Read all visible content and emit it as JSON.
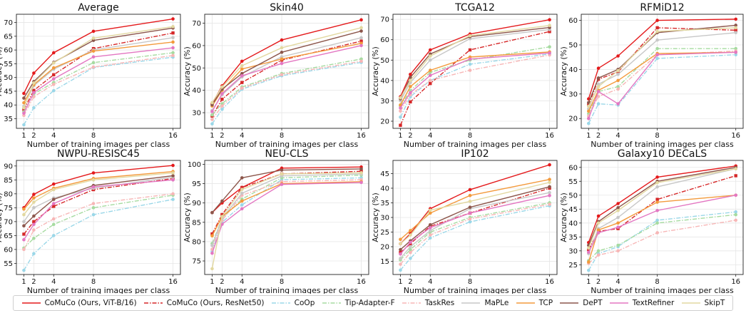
{
  "legend": [
    {
      "name": "CoMuCo (Ours, ViT-B/16)",
      "color": "#e41a1c",
      "dash": "solid",
      "marker": "circle"
    },
    {
      "name": "CoMuCo (Ours, ResNet50)",
      "color": "#d62728",
      "dash": "dashdot",
      "marker": "square"
    },
    {
      "name": "CoOp",
      "color": "#9ad7e8",
      "dash": "dashdot",
      "marker": "circle"
    },
    {
      "name": "Tip-Adapter-F",
      "color": "#a6dba0",
      "dash": "dashdot",
      "marker": "circle"
    },
    {
      "name": "TaskRes",
      "color": "#f7b6b6",
      "dash": "dashdot",
      "marker": "circle"
    },
    {
      "name": "MaPLe",
      "color": "#c7c7c7",
      "dash": "solid",
      "marker": "circle"
    },
    {
      "name": "TCP",
      "color": "#f39a3c",
      "dash": "solid",
      "marker": "circle"
    },
    {
      "name": "DePT",
      "color": "#8c564b",
      "dash": "solid",
      "marker": "circle"
    },
    {
      "name": "TextRefiner",
      "color": "#e377c2",
      "dash": "solid",
      "marker": "circle"
    },
    {
      "name": "SkipT",
      "color": "#e2d8a0",
      "dash": "solid",
      "marker": "circle"
    }
  ],
  "chart_data": [
    {
      "type": "line",
      "title": "Average",
      "xlabel": "Number of training images per class",
      "ylabel": "Accuracy (%)",
      "x": [
        1,
        2,
        4,
        8,
        16
      ],
      "xticks": [
        "1",
        "2",
        "4",
        "8",
        "16"
      ],
      "ylim": [
        31.5,
        73
      ],
      "yticks": [
        35,
        40,
        45,
        50,
        55,
        60,
        65,
        70
      ],
      "series": [
        {
          "name": "CoMuCo (Ours, ViT-B/16)",
          "values": [
            44.2,
            51.6,
            59.0,
            66.8,
            71.3
          ]
        },
        {
          "name": "CoMuCo (Ours, ResNet50)",
          "values": [
            38.3,
            45.3,
            51.0,
            60.5,
            66.2
          ]
        },
        {
          "name": "CoOp",
          "values": [
            32.8,
            39.0,
            45.2,
            53.6,
            57.4
          ]
        },
        {
          "name": "Tip-Adapter-F",
          "values": [
            37.5,
            44.0,
            48.2,
            55.4,
            59.0
          ]
        },
        {
          "name": "TaskRes",
          "values": [
            36.2,
            43.0,
            47.5,
            53.8,
            58.0
          ]
        },
        {
          "name": "MaPLe",
          "values": [
            39.5,
            47.0,
            53.0,
            60.0,
            64.5
          ]
        },
        {
          "name": "TCP",
          "values": [
            40.8,
            47.4,
            53.5,
            59.6,
            62.9
          ]
        },
        {
          "name": "DePT",
          "values": [
            42.5,
            48.5,
            55.5,
            63.5,
            68.0
          ]
        },
        {
          "name": "TextRefiner",
          "values": [
            37.0,
            44.5,
            49.5,
            57.5,
            60.8
          ]
        },
        {
          "name": "SkipT",
          "values": [
            39.0,
            48.0,
            55.3,
            64.3,
            68.5
          ]
        }
      ]
    },
    {
      "type": "line",
      "title": "Skin40",
      "xlabel": "Number of training images per class",
      "ylabel": "Accuracy (%)",
      "x": [
        1,
        2,
        4,
        8,
        16
      ],
      "xticks": [
        "1",
        "2",
        "4",
        "8",
        "16"
      ],
      "ylim": [
        23,
        74
      ],
      "yticks": [
        30,
        40,
        50,
        60,
        70
      ],
      "series": [
        {
          "name": "CoMuCo (Ours, ViT-B/16)",
          "values": [
            34.0,
            42.0,
            53.0,
            62.5,
            71.5
          ]
        },
        {
          "name": "CoMuCo (Ours, ResNet50)",
          "values": [
            28.5,
            36.0,
            43.5,
            53.5,
            62.0
          ]
        },
        {
          "name": "CoOp",
          "values": [
            25.0,
            31.5,
            40.5,
            46.5,
            52.5
          ]
        },
        {
          "name": "Tip-Adapter-F",
          "values": [
            29.0,
            34.0,
            41.5,
            47.5,
            54.0
          ]
        },
        {
          "name": "TaskRes",
          "values": [
            27.0,
            33.0,
            41.0,
            47.0,
            53.0
          ]
        },
        {
          "name": "MaPLe",
          "values": [
            31.0,
            38.0,
            46.0,
            55.0,
            63.5
          ]
        },
        {
          "name": "TCP",
          "values": [
            33.0,
            40.0,
            49.5,
            54.0,
            61.0
          ]
        },
        {
          "name": "DePT",
          "values": [
            33.5,
            40.5,
            47.5,
            57.0,
            66.5
          ]
        },
        {
          "name": "TextRefiner",
          "values": [
            30.5,
            38.5,
            46.5,
            52.0,
            60.0
          ]
        },
        {
          "name": "SkipT",
          "values": [
            34.5,
            41.5,
            51.0,
            59.0,
            68.0
          ]
        }
      ]
    },
    {
      "type": "line",
      "title": "TCGA12",
      "xlabel": "Number of training images per class",
      "ylabel": "Accuracy (%)",
      "x": [
        1,
        2,
        4,
        8,
        16
      ],
      "xticks": [
        "1",
        "2",
        "4",
        "8",
        "16"
      ],
      "ylim": [
        16.5,
        72.5
      ],
      "yticks": [
        20,
        30,
        40,
        50,
        60,
        70
      ],
      "series": [
        {
          "name": "CoMuCo (Ours, ViT-B/16)",
          "values": [
            32.0,
            43.0,
            55.0,
            62.8,
            69.8
          ]
        },
        {
          "name": "CoMuCo (Ours, ResNet50)",
          "values": [
            18.0,
            29.5,
            38.5,
            55.0,
            64.0
          ]
        },
        {
          "name": "CoOp",
          "values": [
            22.0,
            32.0,
            40.0,
            48.0,
            53.0
          ]
        },
        {
          "name": "Tip-Adapter-F",
          "values": [
            27.5,
            35.0,
            44.0,
            50.0,
            56.5
          ]
        },
        {
          "name": "TaskRes",
          "values": [
            25.0,
            33.0,
            40.0,
            45.0,
            52.5
          ]
        },
        {
          "name": "MaPLe",
          "values": [
            30.0,
            39.0,
            50.0,
            60.5,
            65.0
          ]
        },
        {
          "name": "TCP",
          "values": [
            28.0,
            37.0,
            45.0,
            51.5,
            54.0
          ]
        },
        {
          "name": "DePT",
          "values": [
            31.0,
            41.5,
            53.0,
            61.5,
            66.0
          ]
        },
        {
          "name": "TextRefiner",
          "values": [
            26.5,
            34.0,
            42.5,
            50.5,
            53.5
          ]
        },
        {
          "name": "SkipT",
          "values": [
            31.5,
            40.0,
            52.0,
            62.0,
            67.0
          ]
        }
      ]
    },
    {
      "type": "line",
      "title": "RFMiD12",
      "xlabel": "Number of training images per class",
      "ylabel": "Accuracy (%)",
      "x": [
        1,
        2,
        4,
        8,
        16
      ],
      "xticks": [
        "1",
        "2",
        "4",
        "8",
        "16"
      ],
      "ylim": [
        16,
        62.5
      ],
      "yticks": [
        20,
        30,
        40,
        50,
        60
      ],
      "series": [
        {
          "name": "CoMuCo (Ours, ViT-B/16)",
          "values": [
            28.0,
            40.5,
            45.5,
            60.0,
            60.5
          ]
        },
        {
          "name": "CoMuCo (Ours, ResNet50)",
          "values": [
            25.5,
            36.0,
            39.0,
            57.0,
            56.0
          ]
        },
        {
          "name": "CoOp",
          "values": [
            18.0,
            26.0,
            25.5,
            44.5,
            46.0
          ]
        },
        {
          "name": "Tip-Adapter-F",
          "values": [
            22.0,
            31.0,
            33.0,
            48.5,
            48.5
          ]
        },
        {
          "name": "TaskRes",
          "values": [
            21.0,
            29.0,
            32.0,
            46.0,
            47.5
          ]
        },
        {
          "name": "MaPLe",
          "values": [
            24.0,
            34.0,
            38.0,
            52.0,
            55.0
          ]
        },
        {
          "name": "TCP",
          "values": [
            23.0,
            31.5,
            35.5,
            46.5,
            47.0
          ]
        },
        {
          "name": "DePT",
          "values": [
            26.5,
            36.5,
            40.0,
            55.0,
            58.0
          ]
        },
        {
          "name": "TextRefiner",
          "values": [
            20.0,
            31.0,
            26.0,
            46.0,
            47.0
          ]
        },
        {
          "name": "SkipT",
          "values": [
            25.0,
            33.0,
            39.5,
            55.5,
            57.0
          ]
        }
      ]
    },
    {
      "type": "line",
      "title": "NWPU-RESISC45",
      "xlabel": "Number of training images per class",
      "ylabel": "Accuracy (%)",
      "x": [
        1,
        2,
        4,
        8,
        16
      ],
      "xticks": [
        "1",
        "2",
        "4",
        "8",
        "16"
      ],
      "ylim": [
        51,
        92
      ],
      "yticks": [
        55,
        60,
        65,
        70,
        75,
        80,
        85,
        90
      ],
      "series": [
        {
          "name": "CoMuCo (Ours, ViT-B/16)",
          "values": [
            75.0,
            79.8,
            83.5,
            87.5,
            90.2
          ]
        },
        {
          "name": "CoMuCo (Ours, ResNet50)",
          "values": [
            65.5,
            70.0,
            75.5,
            81.5,
            85.5
          ]
        },
        {
          "name": "CoOp",
          "values": [
            52.5,
            58.5,
            65.0,
            72.5,
            78.0
          ]
        },
        {
          "name": "Tip-Adapter-F",
          "values": [
            60.5,
            64.0,
            69.0,
            75.0,
            79.5
          ]
        },
        {
          "name": "TaskRes",
          "values": [
            60.0,
            67.0,
            71.0,
            76.5,
            80.0
          ]
        },
        {
          "name": "MaPLe",
          "values": [
            70.0,
            75.0,
            78.5,
            82.0,
            86.0
          ]
        },
        {
          "name": "TCP",
          "values": [
            74.5,
            78.5,
            82.0,
            85.5,
            88.0
          ]
        },
        {
          "name": "DePT",
          "values": [
            68.5,
            72.0,
            78.0,
            83.0,
            86.5
          ]
        },
        {
          "name": "TextRefiner",
          "values": [
            63.5,
            69.0,
            76.5,
            82.5,
            85.0
          ]
        },
        {
          "name": "SkipT",
          "values": [
            72.5,
            77.0,
            81.5,
            85.0,
            87.5
          ]
        }
      ]
    },
    {
      "type": "line",
      "title": "NEU-CLS",
      "xlabel": "Number of training images per class",
      "ylabel": "Accuracy (%)",
      "x": [
        1,
        2,
        4,
        8,
        16
      ],
      "xticks": [
        "1",
        "2",
        "4",
        "8",
        "16"
      ],
      "ylim": [
        71.5,
        101
      ],
      "yticks": [
        75,
        80,
        85,
        90,
        95,
        100
      ],
      "series": [
        {
          "name": "CoMuCo (Ours, ViT-B/16)",
          "values": [
            87.5,
            90.0,
            94.0,
            99.0,
            99.3
          ]
        },
        {
          "name": "CoMuCo (Ours, ResNet50)",
          "values": [
            82.0,
            87.0,
            94.0,
            97.5,
            98.2
          ]
        },
        {
          "name": "CoOp",
          "values": [
            77.5,
            85.0,
            89.5,
            96.0,
            96.5
          ]
        },
        {
          "name": "Tip-Adapter-F",
          "values": [
            79.5,
            86.0,
            91.0,
            96.5,
            97.2
          ]
        },
        {
          "name": "TaskRes",
          "values": [
            78.0,
            85.5,
            92.0,
            95.5,
            96.0
          ]
        },
        {
          "name": "MaPLe",
          "values": [
            79.0,
            86.0,
            92.5,
            97.0,
            97.5
          ]
        },
        {
          "name": "TCP",
          "values": [
            81.5,
            86.5,
            90.5,
            95.0,
            95.5
          ]
        },
        {
          "name": "DePT",
          "values": [
            87.5,
            90.5,
            96.5,
            98.5,
            98.8
          ]
        },
        {
          "name": "TextRefiner",
          "values": [
            77.0,
            84.5,
            88.5,
            94.8,
            95.3
          ]
        },
        {
          "name": "SkipT",
          "values": [
            73.0,
            86.5,
            93.5,
            97.5,
            97.8
          ]
        }
      ]
    },
    {
      "type": "line",
      "title": "IP102",
      "xlabel": "Number of training images per class",
      "ylabel": "Accuracy (%)",
      "x": [
        1,
        2,
        4,
        8,
        16
      ],
      "xticks": [
        "1",
        "2",
        "4",
        "8",
        "16"
      ],
      "ylim": [
        10.5,
        49.5
      ],
      "yticks": [
        15,
        20,
        25,
        30,
        35,
        40,
        45
      ],
      "series": [
        {
          "name": "CoMuCo (Ours, ViT-B/16)",
          "values": [
            21.0,
            24.5,
            33.0,
            39.5,
            48.0
          ]
        },
        {
          "name": "CoMuCo (Ours, ResNet50)",
          "values": [
            18.0,
            21.0,
            27.0,
            31.5,
            40.0
          ]
        },
        {
          "name": "CoOp",
          "values": [
            12.0,
            16.0,
            23.0,
            28.5,
            34.0
          ]
        },
        {
          "name": "Tip-Adapter-F",
          "values": [
            15.5,
            19.0,
            25.0,
            30.0,
            35.0
          ]
        },
        {
          "name": "TaskRes",
          "values": [
            14.0,
            18.0,
            24.0,
            29.5,
            34.5
          ]
        },
        {
          "name": "MaPLe",
          "values": [
            16.0,
            20.0,
            25.5,
            33.0,
            38.5
          ]
        },
        {
          "name": "TCP",
          "values": [
            22.5,
            25.5,
            31.5,
            37.5,
            43.0
          ]
        },
        {
          "name": "DePT",
          "values": [
            19.0,
            22.0,
            27.5,
            33.5,
            40.5
          ]
        },
        {
          "name": "TextRefiner",
          "values": [
            17.5,
            21.5,
            26.5,
            31.5,
            37.5
          ]
        },
        {
          "name": "SkipT",
          "values": [
            21.0,
            24.0,
            32.5,
            35.5,
            42.0
          ]
        }
      ]
    },
    {
      "type": "line",
      "title": "Galaxy10 DECaLS",
      "xlabel": "Number of training images per class",
      "ylabel": "Accuracy (%)",
      "x": [
        1,
        2,
        4,
        8,
        16
      ],
      "xticks": [
        "1",
        "2",
        "4",
        "8",
        "16"
      ],
      "ylim": [
        21.5,
        62.5
      ],
      "yticks": [
        25,
        30,
        35,
        40,
        45,
        50,
        55,
        60
      ],
      "series": [
        {
          "name": "CoMuCo (Ours, ViT-B/16)",
          "values": [
            33.0,
            42.5,
            47.0,
            56.5,
            60.5
          ]
        },
        {
          "name": "CoMuCo (Ours, ResNet50)",
          "values": [
            30.5,
            37.0,
            38.0,
            48.5,
            57.0
          ]
        },
        {
          "name": "CoOp",
          "values": [
            23.0,
            29.0,
            31.5,
            41.0,
            44.0
          ]
        },
        {
          "name": "Tip-Adapter-F",
          "values": [
            26.5,
            30.0,
            32.0,
            40.0,
            43.0
          ]
        },
        {
          "name": "TaskRes",
          "values": [
            25.5,
            28.5,
            30.0,
            36.5,
            41.0
          ]
        },
        {
          "name": "MaPLe",
          "values": [
            29.0,
            38.0,
            42.0,
            53.0,
            59.5
          ]
        },
        {
          "name": "TCP",
          "values": [
            26.0,
            37.5,
            40.0,
            47.5,
            50.0
          ]
        },
        {
          "name": "DePT",
          "values": [
            32.0,
            40.5,
            45.5,
            55.0,
            60.0
          ]
        },
        {
          "name": "TextRefiner",
          "values": [
            29.5,
            36.5,
            38.5,
            44.5,
            50.0
          ]
        },
        {
          "name": "SkipT",
          "values": [
            31.0,
            40.0,
            44.5,
            54.5,
            59.5
          ]
        }
      ]
    }
  ]
}
